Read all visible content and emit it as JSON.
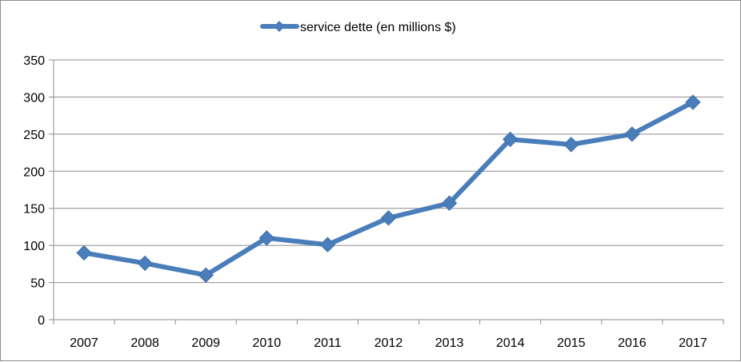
{
  "chart_data": {
    "type": "line",
    "title": "",
    "xlabel": "",
    "ylabel": "",
    "legend_position": "top",
    "grid": true,
    "ylim": [
      0,
      350
    ],
    "y_ticks": [
      "0",
      "50",
      "100",
      "150",
      "200",
      "250",
      "300",
      "350"
    ],
    "categories": [
      "2007",
      "2008",
      "2009",
      "2010",
      "2011",
      "2012",
      "2013",
      "2014",
      "2015",
      "2016",
      "2017"
    ],
    "series": [
      {
        "name": "service dette (en millions $)",
        "color": "#4a7ebb",
        "values": [
          90,
          76,
          60,
          110,
          101,
          137,
          157,
          243,
          236,
          250,
          293
        ]
      }
    ]
  }
}
